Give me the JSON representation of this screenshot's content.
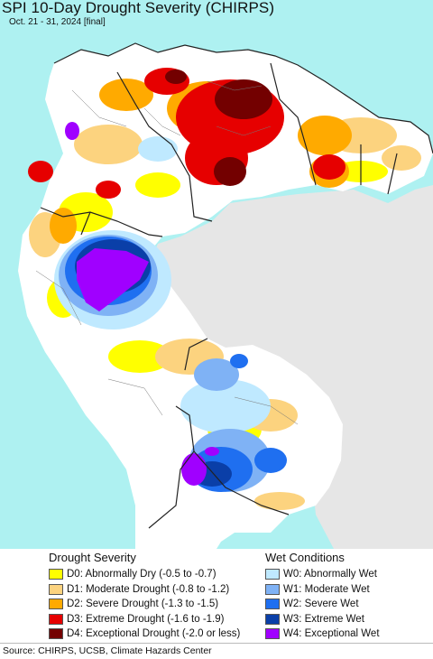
{
  "map": {
    "title": "SPI 10-Day Drought Severity (CHIRPS)",
    "subtitle": "Oct. 21 - 31, 2024 [final]",
    "colors": {
      "ocean": "#aef1f1",
      "land_no_data": "#e6e6e6",
      "normal": "#ffffff",
      "border": "#222222"
    }
  },
  "legend": {
    "drought_heading": "Drought Severity",
    "wet_heading": "Wet Conditions",
    "drought": [
      {
        "label": "D0: Abnormally Dry (-0.5 to -0.7)",
        "color": "#ffff00"
      },
      {
        "label": "D1: Moderate Drought (-0.8 to -1.2)",
        "color": "#fcd37f"
      },
      {
        "label": "D2: Severe Drought (-1.3 to -1.5)",
        "color": "#ffaa00"
      },
      {
        "label": "D3: Extreme Drought (-1.6 to -1.9)",
        "color": "#e60000"
      },
      {
        "label": "D4: Exceptional Drought (-2.0 or less)",
        "color": "#730000"
      }
    ],
    "wet": [
      {
        "label": "W0: Abnormally Wet",
        "color": "#bfe9ff"
      },
      {
        "label": "W1: Moderate Wet",
        "color": "#7fb2f5"
      },
      {
        "label": "W2: Severe Wet",
        "color": "#1f6ff0"
      },
      {
        "label": "W3: Extreme Wet",
        "color": "#0a3fa8"
      },
      {
        "label": "W4: Exceptional Wet",
        "color": "#a000ff"
      }
    ]
  },
  "footer": {
    "source": "Source: CHIRPS, UCSB, Climate Hazards Center"
  }
}
